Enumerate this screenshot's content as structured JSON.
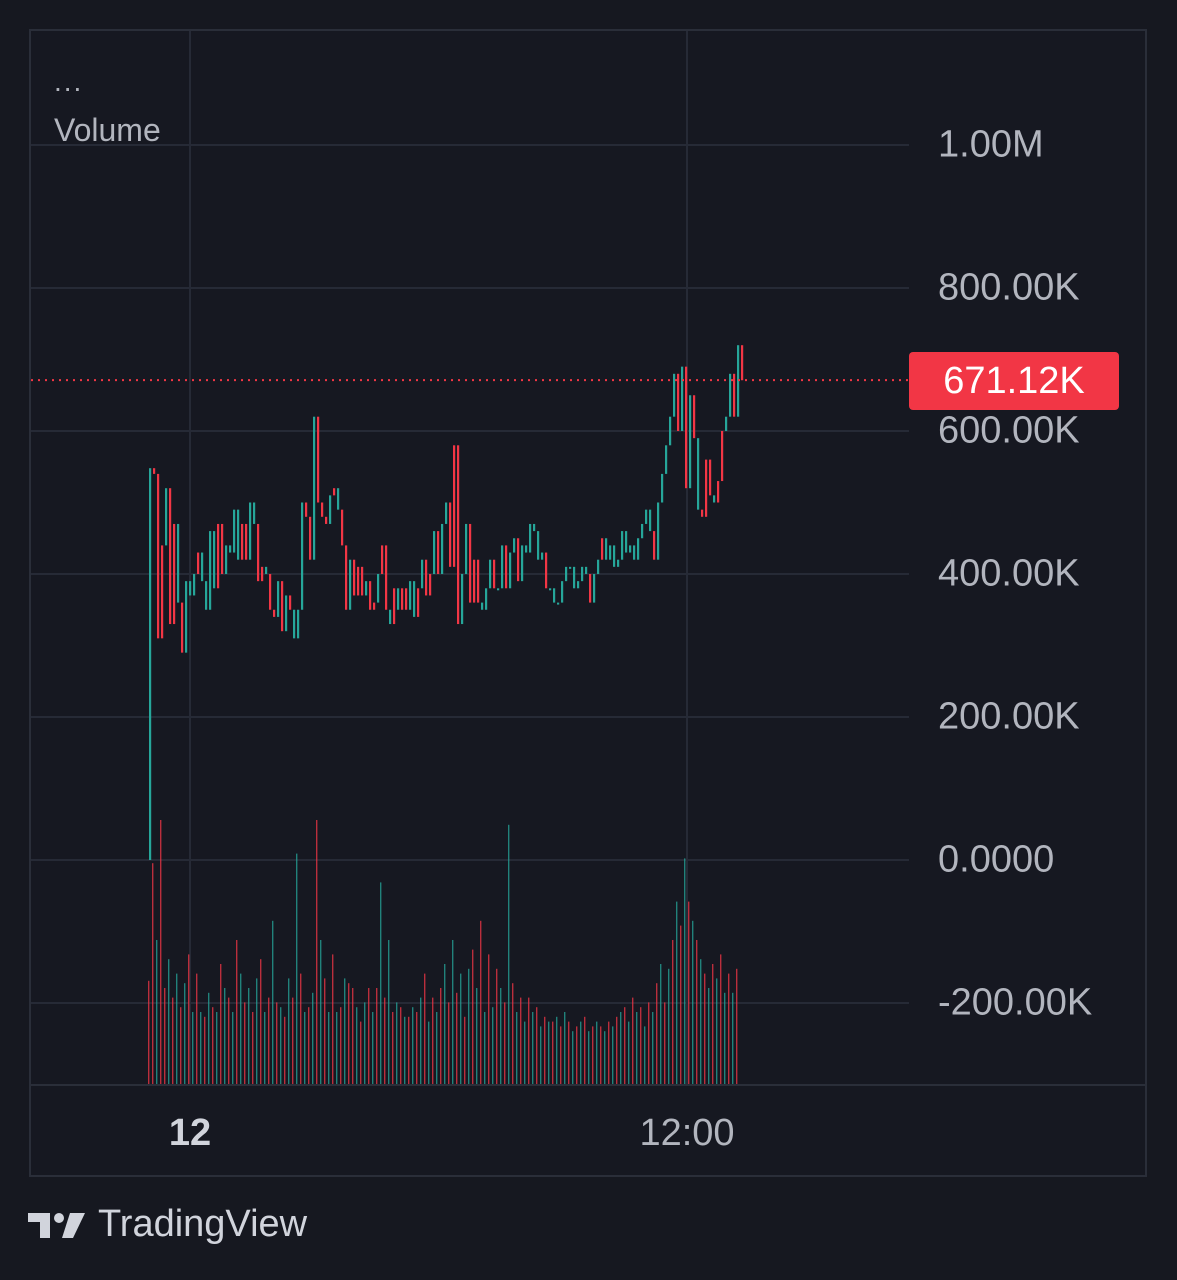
{
  "legend": {
    "more": "...",
    "title": "Volume"
  },
  "price_tag": "671.12K",
  "brand": {
    "name": "TradingView",
    "logo_icon": "tradingview-logo-icon"
  },
  "colors": {
    "up": "#26a69a",
    "down": "#f23645",
    "grid": "#262a36",
    "text": "#b2b5be"
  },
  "chart_data": {
    "type": "line",
    "title": "",
    "series_label": "Volume",
    "y_ticks": [
      "1.00M",
      "800.00K",
      "600.00K",
      "400.00K",
      "200.00K",
      "0.0000",
      "-200.00K"
    ],
    "y_tick_values": [
      1000000,
      800000,
      600000,
      400000,
      200000,
      0,
      -200000
    ],
    "ylim": [
      -315000,
      1000000
    ],
    "x_ticks": [
      {
        "label": "12",
        "bold": true,
        "bar_index": 5
      },
      {
        "label": "12:00",
        "bold": false,
        "bar_index": 136
      }
    ],
    "last_value": 671120,
    "bars": [
      [
        0,
        0,
        548
      ],
      [
        1,
        548,
        540
      ],
      [
        1,
        540,
        310
      ],
      [
        1,
        310,
        440
      ],
      [
        0,
        440,
        520
      ],
      [
        1,
        520,
        330
      ],
      [
        1,
        330,
        470
      ],
      [
        0,
        470,
        360
      ],
      [
        1,
        360,
        290
      ],
      [
        0,
        290,
        390
      ],
      [
        0,
        390,
        370
      ],
      [
        0,
        370,
        400
      ],
      [
        1,
        400,
        430
      ],
      [
        0,
        430,
        390
      ],
      [
        0,
        390,
        350
      ],
      [
        0,
        350,
        460
      ],
      [
        0,
        460,
        380
      ],
      [
        1,
        380,
        470
      ],
      [
        1,
        470,
        400
      ],
      [
        0,
        400,
        440
      ],
      [
        0,
        440,
        430
      ],
      [
        0,
        430,
        490
      ],
      [
        0,
        490,
        420
      ],
      [
        1,
        420,
        470
      ],
      [
        1,
        470,
        420
      ],
      [
        0,
        420,
        500
      ],
      [
        0,
        500,
        470
      ],
      [
        1,
        470,
        390
      ],
      [
        1,
        390,
        410
      ],
      [
        0,
        410,
        400
      ],
      [
        1,
        400,
        350
      ],
      [
        1,
        350,
        340
      ],
      [
        0,
        340,
        390
      ],
      [
        1,
        390,
        320
      ],
      [
        0,
        320,
        370
      ],
      [
        1,
        370,
        350
      ],
      [
        0,
        350,
        310
      ],
      [
        0,
        310,
        350
      ],
      [
        0,
        350,
        500
      ],
      [
        1,
        500,
        480
      ],
      [
        1,
        480,
        420
      ],
      [
        0,
        420,
        620
      ],
      [
        1,
        620,
        500
      ],
      [
        1,
        500,
        480
      ],
      [
        1,
        480,
        470
      ],
      [
        0,
        470,
        510
      ],
      [
        1,
        510,
        520
      ],
      [
        0,
        520,
        490
      ],
      [
        1,
        490,
        440
      ],
      [
        1,
        440,
        350
      ],
      [
        0,
        350,
        420
      ],
      [
        1,
        420,
        370
      ],
      [
        1,
        370,
        410
      ],
      [
        1,
        410,
        370
      ],
      [
        0,
        370,
        390
      ],
      [
        1,
        390,
        350
      ],
      [
        1,
        350,
        360
      ],
      [
        0,
        360,
        400
      ],
      [
        1,
        400,
        440
      ],
      [
        1,
        440,
        350
      ],
      [
        0,
        350,
        330
      ],
      [
        1,
        330,
        380
      ],
      [
        0,
        380,
        350
      ],
      [
        1,
        350,
        380
      ],
      [
        1,
        380,
        350
      ],
      [
        0,
        350,
        390
      ],
      [
        0,
        390,
        340
      ],
      [
        1,
        340,
        380
      ],
      [
        0,
        380,
        420
      ],
      [
        1,
        420,
        370
      ],
      [
        1,
        370,
        400
      ],
      [
        0,
        400,
        460
      ],
      [
        1,
        460,
        400
      ],
      [
        0,
        400,
        470
      ],
      [
        0,
        470,
        500
      ],
      [
        1,
        500,
        410
      ],
      [
        1,
        410,
        580
      ],
      [
        1,
        580,
        330
      ],
      [
        0,
        330,
        400
      ],
      [
        0,
        400,
        470
      ],
      [
        1,
        470,
        360
      ],
      [
        1,
        360,
        420
      ],
      [
        1,
        420,
        360
      ],
      [
        0,
        360,
        350
      ],
      [
        0,
        350,
        380
      ],
      [
        0,
        380,
        420
      ],
      [
        1,
        420,
        380
      ],
      [
        0,
        380,
        380
      ],
      [
        0,
        380,
        440
      ],
      [
        1,
        440,
        380
      ],
      [
        0,
        380,
        430
      ],
      [
        0,
        430,
        450
      ],
      [
        1,
        450,
        390
      ],
      [
        0,
        390,
        440
      ],
      [
        0,
        440,
        430
      ],
      [
        0,
        430,
        470
      ],
      [
        0,
        470,
        460
      ],
      [
        0,
        460,
        420
      ],
      [
        0,
        420,
        430
      ],
      [
        1,
        430,
        380
      ],
      [
        0,
        380,
        380
      ],
      [
        0,
        380,
        360
      ],
      [
        0,
        360,
        360
      ],
      [
        0,
        360,
        390
      ],
      [
        0,
        390,
        410
      ],
      [
        0,
        410,
        410
      ],
      [
        0,
        410,
        380
      ],
      [
        0,
        380,
        390
      ],
      [
        0,
        390,
        410
      ],
      [
        0,
        410,
        400
      ],
      [
        1,
        400,
        360
      ],
      [
        0,
        360,
        400
      ],
      [
        0,
        400,
        420
      ],
      [
        1,
        420,
        450
      ],
      [
        0,
        450,
        420
      ],
      [
        0,
        420,
        440
      ],
      [
        0,
        440,
        410
      ],
      [
        0,
        410,
        420
      ],
      [
        0,
        420,
        460
      ],
      [
        0,
        460,
        430
      ],
      [
        0,
        430,
        440
      ],
      [
        0,
        440,
        420
      ],
      [
        0,
        420,
        450
      ],
      [
        0,
        450,
        470
      ],
      [
        0,
        470,
        490
      ],
      [
        0,
        490,
        460
      ],
      [
        1,
        460,
        420
      ],
      [
        0,
        420,
        500
      ],
      [
        0,
        500,
        540
      ],
      [
        0,
        540,
        580
      ],
      [
        0,
        580,
        620
      ],
      [
        0,
        620,
        680
      ],
      [
        1,
        680,
        600
      ],
      [
        0,
        600,
        690
      ],
      [
        1,
        690,
        520
      ],
      [
        0,
        520,
        650
      ],
      [
        1,
        650,
        590
      ],
      [
        0,
        590,
        490
      ],
      [
        1,
        490,
        480
      ],
      [
        1,
        480,
        560
      ],
      [
        1,
        560,
        510
      ],
      [
        0,
        510,
        500
      ],
      [
        1,
        500,
        530
      ],
      [
        1,
        530,
        600
      ],
      [
        0,
        600,
        620
      ],
      [
        0,
        620,
        680
      ],
      [
        1,
        680,
        620
      ],
      [
        0,
        620,
        720
      ],
      [
        1,
        720,
        671
      ]
    ],
    "volume_bars": [
      [
        1,
        215
      ],
      [
        1,
        460
      ],
      [
        0,
        300
      ],
      [
        1,
        550
      ],
      [
        1,
        200
      ],
      [
        0,
        260
      ],
      [
        1,
        180
      ],
      [
        0,
        230
      ],
      [
        1,
        160
      ],
      [
        0,
        210
      ],
      [
        1,
        270
      ],
      [
        0,
        150
      ],
      [
        1,
        230
      ],
      [
        0,
        150
      ],
      [
        1,
        140
      ],
      [
        0,
        190
      ],
      [
        1,
        160
      ],
      [
        0,
        150
      ],
      [
        1,
        250
      ],
      [
        0,
        200
      ],
      [
        1,
        180
      ],
      [
        0,
        150
      ],
      [
        1,
        300
      ],
      [
        0,
        230
      ],
      [
        1,
        170
      ],
      [
        0,
        200
      ],
      [
        1,
        150
      ],
      [
        0,
        220
      ],
      [
        1,
        260
      ],
      [
        0,
        150
      ],
      [
        1,
        180
      ],
      [
        0,
        340
      ],
      [
        1,
        170
      ],
      [
        0,
        160
      ],
      [
        1,
        140
      ],
      [
        0,
        220
      ],
      [
        1,
        180
      ],
      [
        0,
        480
      ],
      [
        1,
        230
      ],
      [
        0,
        150
      ],
      [
        1,
        160
      ],
      [
        0,
        190
      ],
      [
        1,
        550
      ],
      [
        0,
        300
      ],
      [
        1,
        220
      ],
      [
        0,
        150
      ],
      [
        1,
        270
      ],
      [
        0,
        150
      ],
      [
        1,
        160
      ],
      [
        0,
        220
      ],
      [
        1,
        210
      ],
      [
        1,
        200
      ],
      [
        0,
        160
      ],
      [
        1,
        130
      ],
      [
        0,
        170
      ],
      [
        1,
        200
      ],
      [
        0,
        150
      ],
      [
        1,
        200
      ],
      [
        0,
        420
      ],
      [
        1,
        180
      ],
      [
        0,
        300
      ],
      [
        1,
        150
      ],
      [
        0,
        170
      ],
      [
        1,
        160
      ],
      [
        0,
        140
      ],
      [
        1,
        140
      ],
      [
        0,
        160
      ],
      [
        1,
        150
      ],
      [
        0,
        180
      ],
      [
        1,
        230
      ],
      [
        0,
        130
      ],
      [
        1,
        180
      ],
      [
        0,
        150
      ],
      [
        1,
        200
      ],
      [
        0,
        250
      ],
      [
        1,
        170
      ],
      [
        0,
        300
      ],
      [
        1,
        190
      ],
      [
        0,
        230
      ],
      [
        1,
        140
      ],
      [
        0,
        240
      ],
      [
        1,
        280
      ],
      [
        0,
        200
      ],
      [
        1,
        340
      ],
      [
        0,
        150
      ],
      [
        1,
        270
      ],
      [
        0,
        160
      ],
      [
        1,
        240
      ],
      [
        0,
        200
      ],
      [
        1,
        170
      ],
      [
        0,
        540
      ],
      [
        1,
        210
      ],
      [
        0,
        150
      ],
      [
        1,
        180
      ],
      [
        0,
        130
      ],
      [
        1,
        180
      ],
      [
        0,
        150
      ],
      [
        1,
        160
      ],
      [
        0,
        120
      ],
      [
        1,
        140
      ],
      [
        0,
        130
      ],
      [
        1,
        130
      ],
      [
        0,
        140
      ],
      [
        1,
        120
      ],
      [
        0,
        150
      ],
      [
        1,
        130
      ],
      [
        0,
        110
      ],
      [
        1,
        120
      ],
      [
        0,
        130
      ],
      [
        1,
        140
      ],
      [
        0,
        110
      ],
      [
        1,
        120
      ],
      [
        0,
        130
      ],
      [
        1,
        120
      ],
      [
        0,
        110
      ],
      [
        1,
        130
      ],
      [
        0,
        120
      ],
      [
        1,
        140
      ],
      [
        0,
        150
      ],
      [
        1,
        160
      ],
      [
        0,
        130
      ],
      [
        1,
        180
      ],
      [
        0,
        150
      ],
      [
        1,
        160
      ],
      [
        0,
        120
      ],
      [
        1,
        170
      ],
      [
        0,
        150
      ],
      [
        1,
        210
      ],
      [
        0,
        250
      ],
      [
        1,
        170
      ],
      [
        0,
        240
      ],
      [
        1,
        300
      ],
      [
        0,
        380
      ],
      [
        1,
        330
      ],
      [
        0,
        470
      ],
      [
        1,
        380
      ],
      [
        0,
        340
      ],
      [
        1,
        300
      ],
      [
        0,
        260
      ],
      [
        1,
        230
      ],
      [
        0,
        200
      ],
      [
        1,
        250
      ],
      [
        0,
        220
      ],
      [
        1,
        270
      ],
      [
        0,
        190
      ],
      [
        1,
        230
      ],
      [
        0,
        190
      ],
      [
        1,
        240
      ]
    ]
  }
}
